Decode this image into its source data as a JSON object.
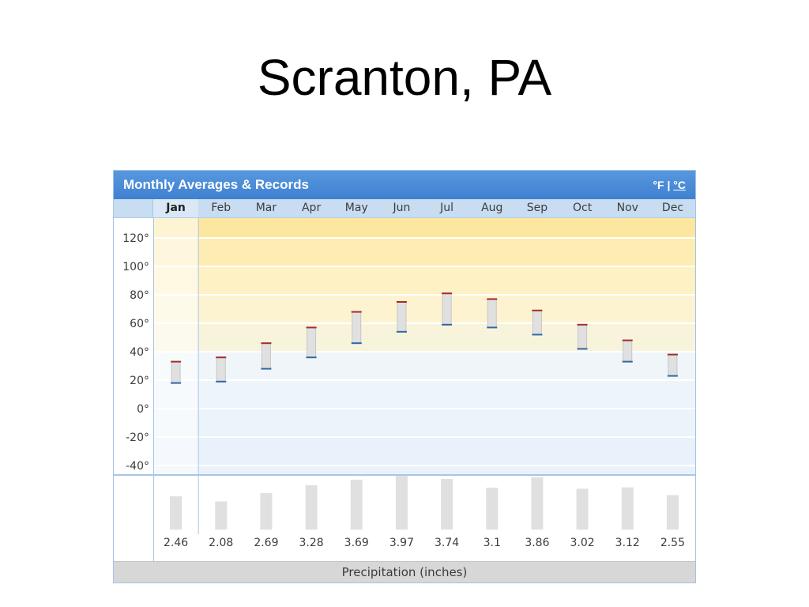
{
  "slide": {
    "title": "Scranton, PA"
  },
  "widget": {
    "units": {
      "fahrenheit": "°F",
      "separator": "|",
      "celsius": "°C"
    }
  },
  "colors": {
    "header_blue": "#4a8ad5",
    "month_row": "#c8dcf2",
    "widget_border": "#a3c2e6",
    "avg_high_tick": "#a52a2a",
    "avg_low_tick": "#2f66a8",
    "bar_fill": "#e0e0e0",
    "bar_stroke": "#c6c6c6",
    "footer": "#d7d7d7",
    "warm_band": "#fde79e",
    "cool_band": "#e9f2fb"
  },
  "chart_data": {
    "type": "bar",
    "title": "Monthly Averages & Records",
    "categories": [
      "Jan",
      "Feb",
      "Mar",
      "Apr",
      "May",
      "Jun",
      "Jul",
      "Aug",
      "Sep",
      "Oct",
      "Nov",
      "Dec"
    ],
    "selected_index": 0,
    "grid": true,
    "temperature": {
      "ylim": [
        -40,
        120
      ],
      "ytick_values": [
        120,
        100,
        80,
        60,
        40,
        20,
        0,
        -20,
        -40
      ],
      "ytick_labels": [
        "120°",
        "100°",
        "80°",
        "60°",
        "40°",
        "20°",
        "0°",
        "-20°",
        "-40°"
      ],
      "avg_high": [
        33,
        36,
        46,
        57,
        68,
        75,
        81,
        77,
        69,
        59,
        48,
        38
      ],
      "avg_low": [
        18,
        19,
        28,
        36,
        46,
        54,
        59,
        57,
        52,
        42,
        33,
        23
      ]
    },
    "precipitation": {
      "name": "Precipitation (inches)",
      "values": [
        2.46,
        2.08,
        2.69,
        3.28,
        3.69,
        3.97,
        3.74,
        3.1,
        3.86,
        3.02,
        3.12,
        2.55
      ]
    }
  }
}
